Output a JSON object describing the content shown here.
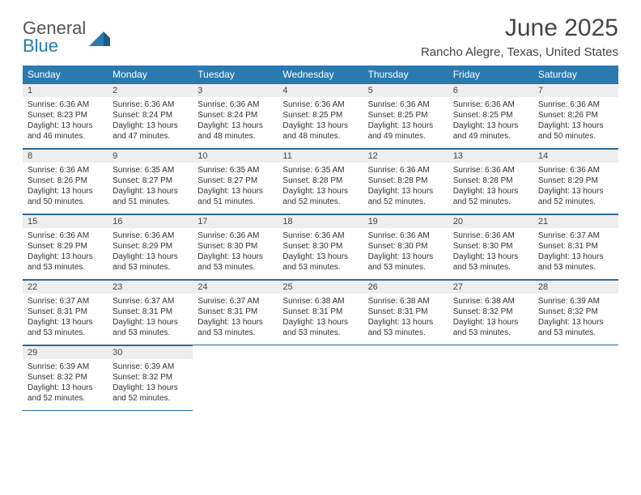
{
  "logo": {
    "line1": "General",
    "line2": "Blue"
  },
  "title": "June 2025",
  "location": "Rancho Alegre, Texas, United States",
  "colors": {
    "header_bg": "#2a7ab0",
    "header_text": "#ffffff",
    "daynum_bg": "#eeeeee",
    "border": "#2a6a9a",
    "text": "#333333",
    "title_text": "#444444"
  },
  "fonts": {
    "title_size_pt": 22,
    "location_size_pt": 11,
    "dow_size_pt": 9,
    "daynum_size_pt": 8,
    "body_size_pt": 7.5
  },
  "dow": [
    "Sunday",
    "Monday",
    "Tuesday",
    "Wednesday",
    "Thursday",
    "Friday",
    "Saturday"
  ],
  "weeks": [
    [
      {
        "n": "1",
        "sr": "Sunrise: 6:36 AM",
        "ss": "Sunset: 8:23 PM",
        "dl": "Daylight: 13 hours and 46 minutes."
      },
      {
        "n": "2",
        "sr": "Sunrise: 6:36 AM",
        "ss": "Sunset: 8:24 PM",
        "dl": "Daylight: 13 hours and 47 minutes."
      },
      {
        "n": "3",
        "sr": "Sunrise: 6:36 AM",
        "ss": "Sunset: 8:24 PM",
        "dl": "Daylight: 13 hours and 48 minutes."
      },
      {
        "n": "4",
        "sr": "Sunrise: 6:36 AM",
        "ss": "Sunset: 8:25 PM",
        "dl": "Daylight: 13 hours and 48 minutes."
      },
      {
        "n": "5",
        "sr": "Sunrise: 6:36 AM",
        "ss": "Sunset: 8:25 PM",
        "dl": "Daylight: 13 hours and 49 minutes."
      },
      {
        "n": "6",
        "sr": "Sunrise: 6:36 AM",
        "ss": "Sunset: 8:25 PM",
        "dl": "Daylight: 13 hours and 49 minutes."
      },
      {
        "n": "7",
        "sr": "Sunrise: 6:36 AM",
        "ss": "Sunset: 8:26 PM",
        "dl": "Daylight: 13 hours and 50 minutes."
      }
    ],
    [
      {
        "n": "8",
        "sr": "Sunrise: 6:36 AM",
        "ss": "Sunset: 8:26 PM",
        "dl": "Daylight: 13 hours and 50 minutes."
      },
      {
        "n": "9",
        "sr": "Sunrise: 6:35 AM",
        "ss": "Sunset: 8:27 PM",
        "dl": "Daylight: 13 hours and 51 minutes."
      },
      {
        "n": "10",
        "sr": "Sunrise: 6:35 AM",
        "ss": "Sunset: 8:27 PM",
        "dl": "Daylight: 13 hours and 51 minutes."
      },
      {
        "n": "11",
        "sr": "Sunrise: 6:35 AM",
        "ss": "Sunset: 8:28 PM",
        "dl": "Daylight: 13 hours and 52 minutes."
      },
      {
        "n": "12",
        "sr": "Sunrise: 6:36 AM",
        "ss": "Sunset: 8:28 PM",
        "dl": "Daylight: 13 hours and 52 minutes."
      },
      {
        "n": "13",
        "sr": "Sunrise: 6:36 AM",
        "ss": "Sunset: 8:28 PM",
        "dl": "Daylight: 13 hours and 52 minutes."
      },
      {
        "n": "14",
        "sr": "Sunrise: 6:36 AM",
        "ss": "Sunset: 8:29 PM",
        "dl": "Daylight: 13 hours and 52 minutes."
      }
    ],
    [
      {
        "n": "15",
        "sr": "Sunrise: 6:36 AM",
        "ss": "Sunset: 8:29 PM",
        "dl": "Daylight: 13 hours and 53 minutes."
      },
      {
        "n": "16",
        "sr": "Sunrise: 6:36 AM",
        "ss": "Sunset: 8:29 PM",
        "dl": "Daylight: 13 hours and 53 minutes."
      },
      {
        "n": "17",
        "sr": "Sunrise: 6:36 AM",
        "ss": "Sunset: 8:30 PM",
        "dl": "Daylight: 13 hours and 53 minutes."
      },
      {
        "n": "18",
        "sr": "Sunrise: 6:36 AM",
        "ss": "Sunset: 8:30 PM",
        "dl": "Daylight: 13 hours and 53 minutes."
      },
      {
        "n": "19",
        "sr": "Sunrise: 6:36 AM",
        "ss": "Sunset: 8:30 PM",
        "dl": "Daylight: 13 hours and 53 minutes."
      },
      {
        "n": "20",
        "sr": "Sunrise: 6:36 AM",
        "ss": "Sunset: 8:30 PM",
        "dl": "Daylight: 13 hours and 53 minutes."
      },
      {
        "n": "21",
        "sr": "Sunrise: 6:37 AM",
        "ss": "Sunset: 8:31 PM",
        "dl": "Daylight: 13 hours and 53 minutes."
      }
    ],
    [
      {
        "n": "22",
        "sr": "Sunrise: 6:37 AM",
        "ss": "Sunset: 8:31 PM",
        "dl": "Daylight: 13 hours and 53 minutes."
      },
      {
        "n": "23",
        "sr": "Sunrise: 6:37 AM",
        "ss": "Sunset: 8:31 PM",
        "dl": "Daylight: 13 hours and 53 minutes."
      },
      {
        "n": "24",
        "sr": "Sunrise: 6:37 AM",
        "ss": "Sunset: 8:31 PM",
        "dl": "Daylight: 13 hours and 53 minutes."
      },
      {
        "n": "25",
        "sr": "Sunrise: 6:38 AM",
        "ss": "Sunset: 8:31 PM",
        "dl": "Daylight: 13 hours and 53 minutes."
      },
      {
        "n": "26",
        "sr": "Sunrise: 6:38 AM",
        "ss": "Sunset: 8:31 PM",
        "dl": "Daylight: 13 hours and 53 minutes."
      },
      {
        "n": "27",
        "sr": "Sunrise: 6:38 AM",
        "ss": "Sunset: 8:32 PM",
        "dl": "Daylight: 13 hours and 53 minutes."
      },
      {
        "n": "28",
        "sr": "Sunrise: 6:39 AM",
        "ss": "Sunset: 8:32 PM",
        "dl": "Daylight: 13 hours and 53 minutes."
      }
    ],
    [
      {
        "n": "29",
        "sr": "Sunrise: 6:39 AM",
        "ss": "Sunset: 8:32 PM",
        "dl": "Daylight: 13 hours and 52 minutes."
      },
      {
        "n": "30",
        "sr": "Sunrise: 6:39 AM",
        "ss": "Sunset: 8:32 PM",
        "dl": "Daylight: 13 hours and 52 minutes."
      },
      null,
      null,
      null,
      null,
      null
    ]
  ]
}
